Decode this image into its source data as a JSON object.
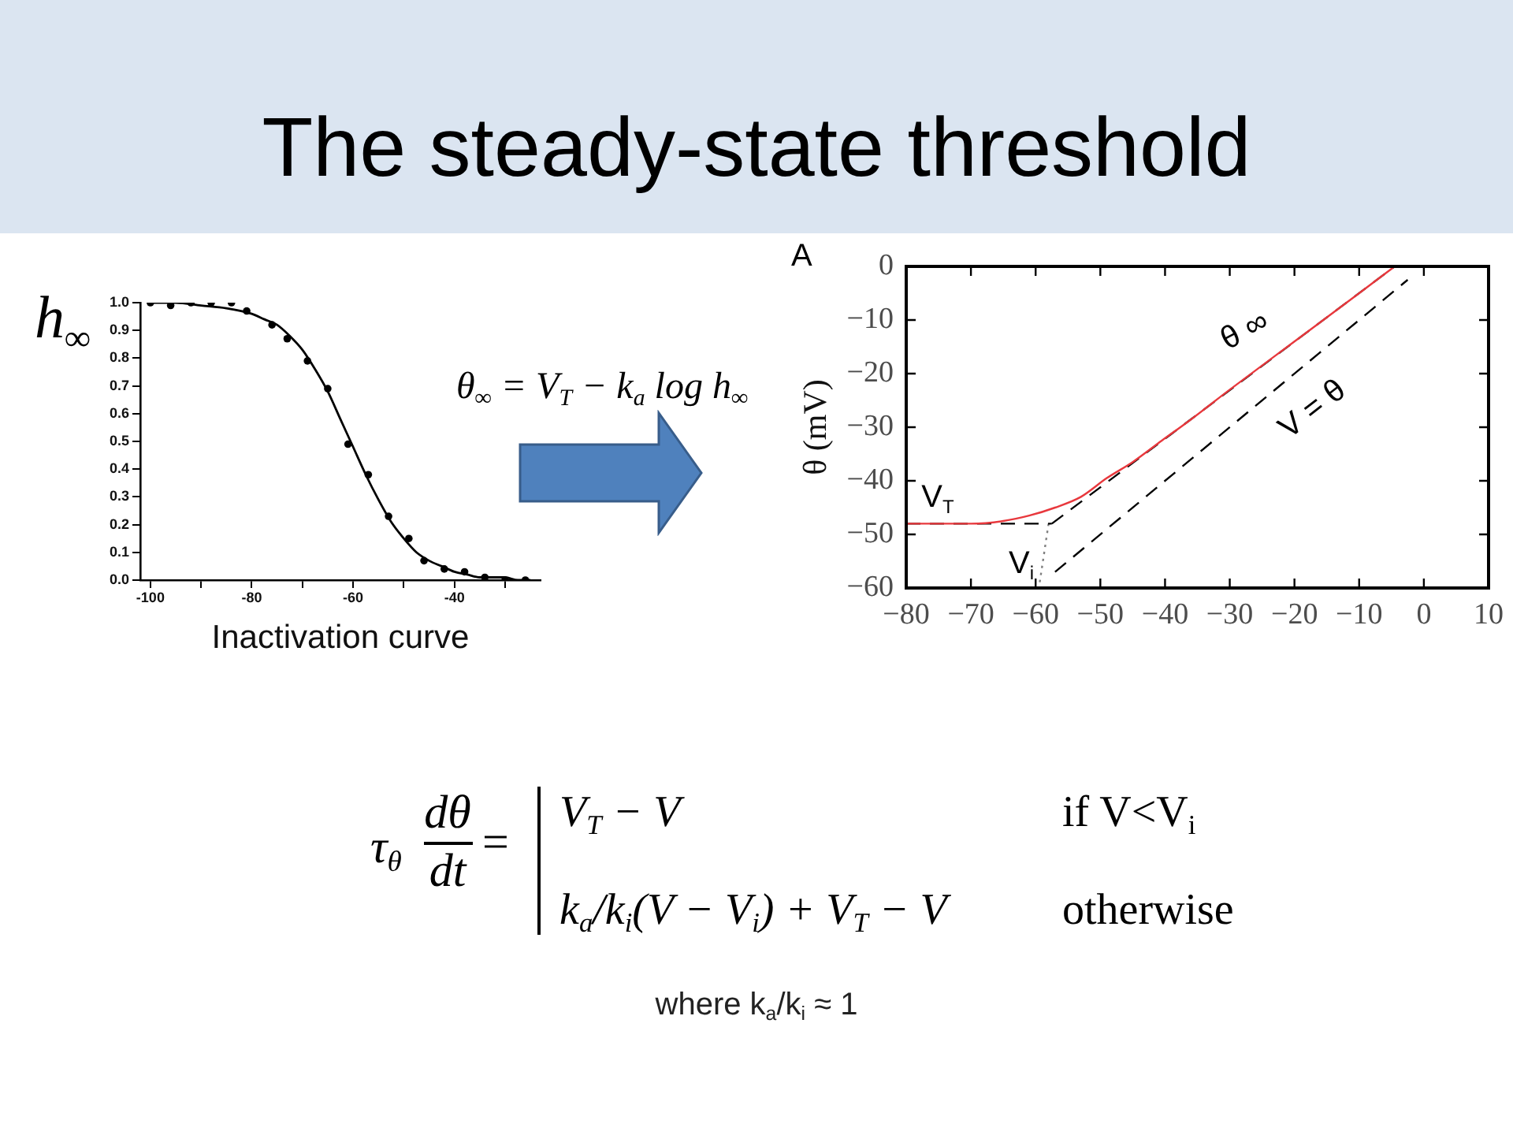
{
  "chart_data": [
    {
      "type": "other",
      "title": "The steady-state threshold"
    },
    {
      "type": "line",
      "xlabel": "Inactivation curve",
      "ylabel": "h$_{∞}$",
      "series": [
        {
          "type": "scatter",
          "color": "#000000",
          "marker": "circle",
          "x": [
            -100,
            -96,
            -92,
            -88,
            -84,
            -81,
            -76,
            -73,
            -69,
            -65,
            -61,
            -57,
            -53,
            -49,
            -46,
            -42,
            -38,
            -34,
            -30,
            -26
          ],
          "values": [
            1.0,
            0.99,
            1.0,
            1.0,
            1.0,
            0.97,
            0.92,
            0.87,
            0.79,
            0.69,
            0.49,
            0.38,
            0.23,
            0.15,
            0.07,
            0.04,
            0.03,
            0.01,
            0.0,
            0.0
          ]
        },
        {
          "type": "line",
          "color": "#000000",
          "marker": "none",
          "line_style": "solid",
          "x": [
            -100,
            -95,
            -90,
            -85,
            -80,
            -77.5,
            -75,
            -72.5,
            -70,
            -67.5,
            -65,
            -62.5,
            -60,
            -57.5,
            -55,
            -52.5,
            -50,
            -47.5,
            -45,
            -42.5,
            -40,
            -37.5,
            -35,
            -32.5,
            -30,
            -27.5,
            -25
          ],
          "values": [
            1.0,
            1.0,
            0.99,
            0.98,
            0.96,
            0.94,
            0.92,
            0.88,
            0.83,
            0.76,
            0.68,
            0.58,
            0.48,
            0.38,
            0.29,
            0.21,
            0.15,
            0.1,
            0.07,
            0.05,
            0.03,
            0.02,
            0.01,
            0.01,
            0.01,
            0.0,
            0.0
          ]
        }
      ],
      "xlim": [
        -102,
        -23
      ],
      "xticks": [
        -100,
        {
          "value": -90,
          "label": null
        },
        -80,
        {
          "value": -70,
          "label": null
        },
        -60,
        {
          "value": -50,
          "label": null
        },
        -40,
        {
          "value": -30,
          "label": null
        }
      ],
      "ylim": [
        0,
        1
      ],
      "yticks": [
        {
          "value": 0,
          "label": "0.0"
        },
        0.1,
        0.2,
        0.3,
        0.4,
        0.5,
        0.6,
        0.7,
        0.8,
        0.9,
        {
          "value": 1,
          "label": "1.0"
        }
      ]
    },
    {
      "type": "other",
      "annotations": [
        "θ$_{∞}$ = V$_{T}$ − k$_{a}$ log h$_{∞}$"
      ]
    },
    {
      "type": "line",
      "title": "A",
      "ylabel": "θ (mV)",
      "series": [
        {
          "color": "#e8383d",
          "line_style": "solid",
          "marker": "none",
          "x": [
            -80,
            -70,
            -65,
            -61,
            -57,
            -53,
            -49,
            -45,
            -40.5,
            -36.5,
            -30,
            -20,
            -10,
            -4.5
          ],
          "values": [
            -48,
            -48,
            -47.5,
            -46.5,
            -45,
            -43,
            -39.5,
            -36.5,
            -32.5,
            -29,
            -23,
            -14,
            -5,
            0
          ]
        },
        {
          "color": "#000000",
          "line_style": "dashed",
          "marker": "none",
          "x": [
            -57.5,
            -4.5
          ],
          "values": [
            -48,
            0
          ]
        },
        {
          "color": "#000000",
          "line_style": "dashed",
          "marker": "none",
          "x": [
            -80,
            -57.5
          ],
          "values": [
            -48,
            -48
          ]
        },
        {
          "color": "#808080",
          "line_style": "dotted",
          "marker": "none",
          "x": [
            -58,
            -59.5
          ],
          "values": [
            -48,
            -60
          ]
        },
        {
          "color": "#000000",
          "line_style": "dashed",
          "marker": "none",
          "x": [
            -57,
            -2.5
          ],
          "values": [
            -57,
            -2.5
          ]
        }
      ],
      "xlim": [
        -80,
        10
      ],
      "xticks": [
        {
          "value": -80,
          "label": "−80"
        },
        {
          "value": -70,
          "label": "−70"
        },
        {
          "value": -60,
          "label": "−60"
        },
        {
          "value": -50,
          "label": "−50"
        },
        {
          "value": -40,
          "label": "−40"
        },
        {
          "value": -30,
          "label": "−30"
        },
        {
          "value": -20,
          "label": "−20"
        },
        {
          "value": -10,
          "label": "−10"
        },
        0,
        10
      ],
      "ylim": [
        -60,
        0
      ],
      "yticks": [
        {
          "value": -60,
          "label": "−60"
        },
        {
          "value": -50,
          "label": "−50"
        },
        {
          "value": -40,
          "label": "−40"
        },
        {
          "value": -30,
          "label": "−30"
        },
        {
          "value": -20,
          "label": "−20"
        },
        {
          "value": -10,
          "label": "−10"
        },
        0
      ],
      "annotations": [
        "V$_{T}$",
        "V$_{i}$",
        "θ ∞",
        "V = θ"
      ]
    },
    {
      "type": "other",
      "annotations": [
        "τ$_{θ}$",
        "dθ",
        "dt",
        "=",
        "V$_{T}$ − V",
        "if V<V$_{i}$",
        "k$_{a}$/k$_{i}$(V − V$_{i}$) + V$_{T}$ − V",
        "otherwise",
        "where k$_{a}$/k$_{i}$ ≈ 1"
      ]
    }
  ]
}
